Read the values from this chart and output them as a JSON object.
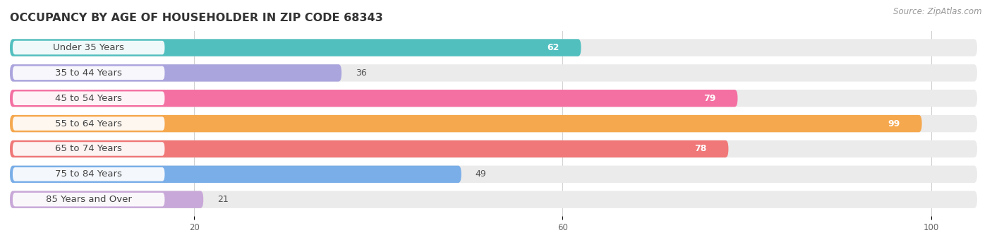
{
  "title": "OCCUPANCY BY AGE OF HOUSEHOLDER IN ZIP CODE 68343",
  "source": "Source: ZipAtlas.com",
  "categories": [
    "Under 35 Years",
    "35 to 44 Years",
    "45 to 54 Years",
    "55 to 64 Years",
    "65 to 74 Years",
    "75 to 84 Years",
    "85 Years and Over"
  ],
  "values": [
    62,
    36,
    79,
    99,
    78,
    49,
    21
  ],
  "bar_colors": [
    "#52bfbf",
    "#aba5de",
    "#f470a2",
    "#f5a84e",
    "#f07878",
    "#7aaee8",
    "#c8a8d8"
  ],
  "xlim_data": [
    0,
    105
  ],
  "xticks": [
    20,
    60,
    100
  ],
  "background_color": "#ffffff",
  "bar_background_color": "#ebebeb",
  "title_fontsize": 11.5,
  "label_fontsize": 9.5,
  "value_fontsize": 9,
  "source_fontsize": 8.5,
  "bar_height": 0.68,
  "value_threshold": 55
}
